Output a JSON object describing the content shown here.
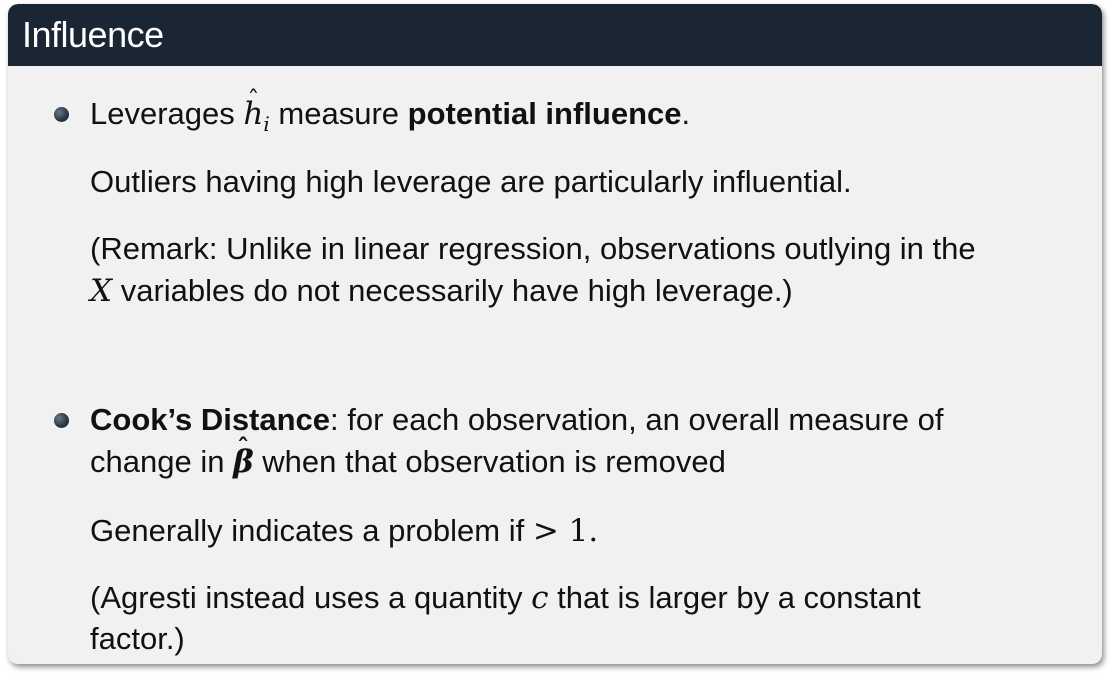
{
  "slide": {
    "title": "Influence",
    "bullet1": {
      "prefix": "Leverages",
      "symbol": "h",
      "subscript": "i",
      "middle": "measure",
      "bold": "potential influence",
      "suffix": ".",
      "line2": "Outliers having high leverage are particularly influential.",
      "line3": "(Remark: Unlike in linear regression, observations outlying in the",
      "line4_symbol": "X",
      "line4_rest": "variables do not necessarily have high leverage.)"
    },
    "bullet2": {
      "bold": "Cook’s Distance",
      "rest": ": for each observation, an overall measure of",
      "line2_prefix": "change in",
      "line2_symbol": "β",
      "line2_rest": "when that observation is removed",
      "line3_prefix": "Generally indicates a problem if",
      "line3_math": "> 1.",
      "line4_prefix": "(Agresti instead uses a quantity",
      "line4_symbol": "c",
      "line4_rest": "that is larger by a constant",
      "line5": "factor.)"
    }
  }
}
